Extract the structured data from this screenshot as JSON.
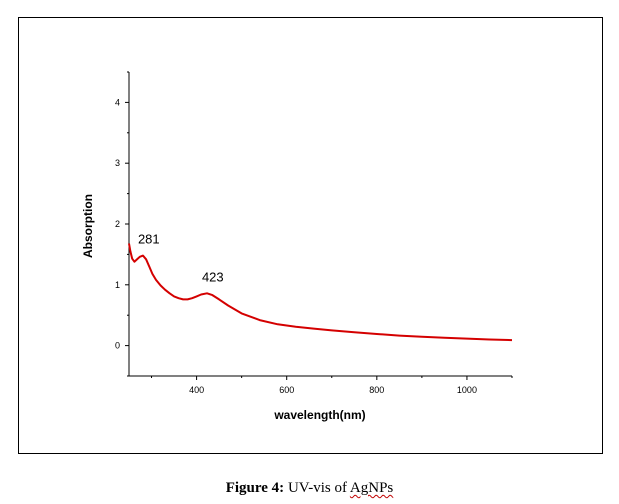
{
  "chart_data": {
    "type": "line",
    "title": "",
    "xlabel": "wavelength(nm)",
    "ylabel": "Absorption",
    "xlim": [
      250,
      1100
    ],
    "ylim": [
      -0.5,
      4.5
    ],
    "xticks": [
      400,
      600,
      800,
      1000
    ],
    "yticks": [
      0,
      1,
      2,
      3,
      4
    ],
    "grid": false,
    "legend": "none",
    "series": [
      {
        "color": "#d40000",
        "x": [
          250,
          253,
          257,
          262,
          268,
          274,
          281,
          288,
          295,
          302,
          310,
          320,
          330,
          340,
          350,
          360,
          370,
          380,
          390,
          400,
          410,
          423,
          435,
          450,
          470,
          500,
          540,
          580,
          620,
          660,
          700,
          750,
          800,
          850,
          900,
          950,
          1000,
          1050,
          1100
        ],
        "y": [
          1.68,
          1.55,
          1.43,
          1.38,
          1.42,
          1.46,
          1.48,
          1.42,
          1.3,
          1.18,
          1.08,
          0.99,
          0.92,
          0.86,
          0.81,
          0.78,
          0.76,
          0.76,
          0.78,
          0.81,
          0.84,
          0.86,
          0.83,
          0.76,
          0.66,
          0.53,
          0.42,
          0.35,
          0.31,
          0.28,
          0.25,
          0.22,
          0.19,
          0.165,
          0.145,
          0.13,
          0.115,
          0.1,
          0.09
        ]
      }
    ],
    "annotations": [
      {
        "text": "281",
        "x": 281,
        "y": 1.48
      },
      {
        "text": "423",
        "x": 423,
        "y": 0.86
      }
    ]
  },
  "caption": {
    "number": "Figure 4:",
    "text": " UV-vis of ",
    "abbr": "AgNPs"
  }
}
